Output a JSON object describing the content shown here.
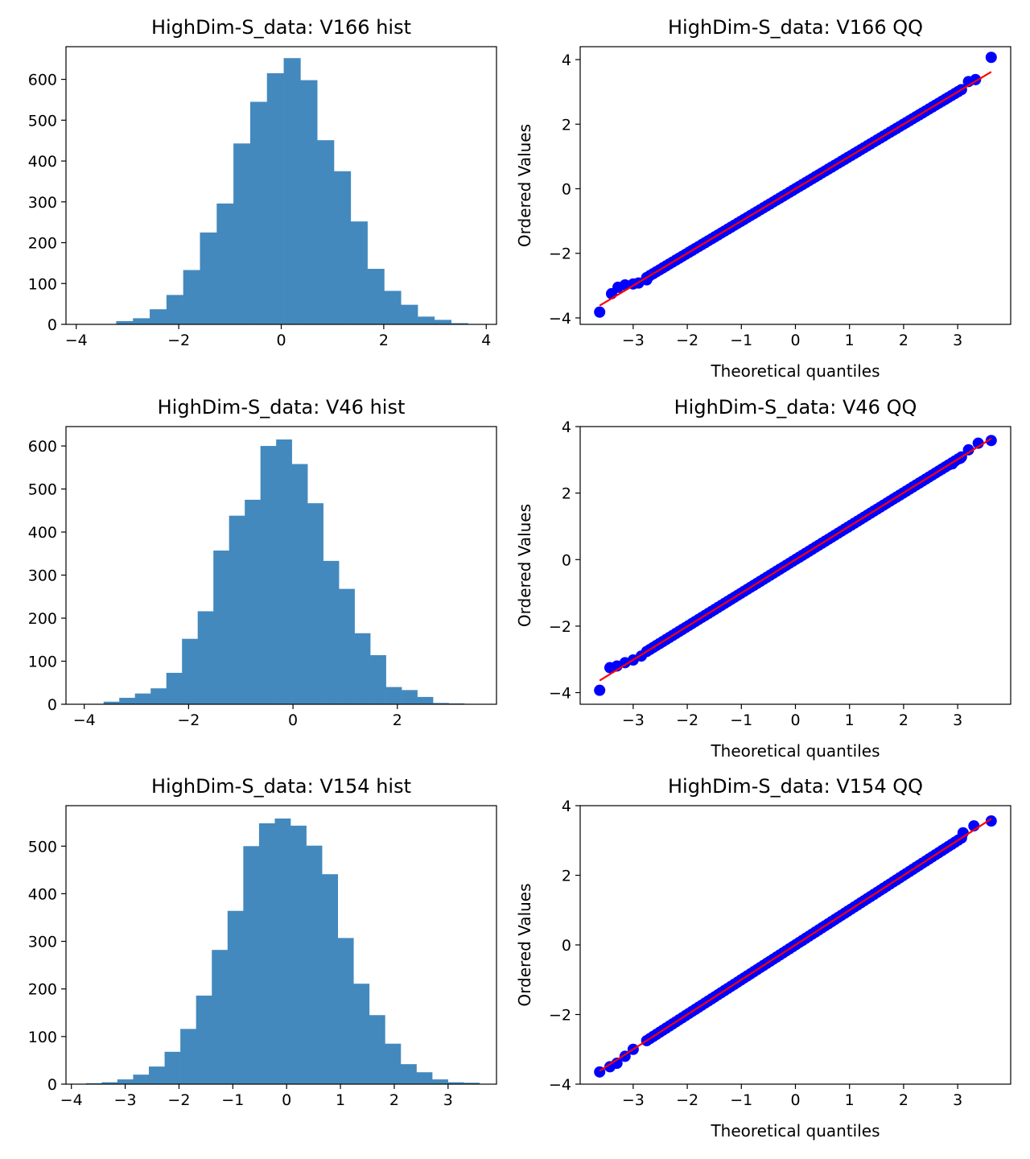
{
  "chart_data": [
    {
      "type": "bar",
      "kind": "histogram",
      "title": "HighDim-S_data: V166 hist",
      "xlabel": "",
      "ylabel": "",
      "xlim": [
        -4.2,
        4.2
      ],
      "ylim": [
        0,
        680
      ],
      "xticks": [
        -4,
        -2,
        0,
        2,
        4
      ],
      "yticks": [
        0,
        100,
        200,
        300,
        400,
        500,
        600
      ],
      "bin_start": -3.22,
      "bin_width": 0.3268,
      "counts": [
        8,
        15,
        37,
        72,
        133,
        225,
        296,
        443,
        545,
        615,
        652,
        598,
        451,
        375,
        252,
        136,
        82,
        48,
        19,
        11,
        3,
        0,
        0,
        0,
        1
      ],
      "color": "#4389BE"
    },
    {
      "type": "scatter",
      "kind": "qq",
      "title": "HighDim-S_data: V166 QQ",
      "xlabel": "Theoretical quantiles",
      "ylabel": "Ordered Values",
      "xlim": [
        -3.98,
        3.98
      ],
      "ylim": [
        -4.2,
        4.4
      ],
      "xticks": [
        -3,
        -2,
        -1,
        0,
        1,
        2,
        3
      ],
      "yticks": [
        -4,
        -2,
        0,
        2,
        4
      ],
      "line": {
        "slope": 1.0,
        "intercept": 0.0
      },
      "points": [
        [
          -3.62,
          -3.82
        ],
        [
          -3.4,
          -3.25
        ],
        [
          -3.28,
          -3.05
        ],
        [
          -3.15,
          -2.98
        ],
        [
          -3.0,
          -2.95
        ],
        [
          -2.9,
          -2.92
        ],
        [
          -2.75,
          -2.82
        ],
        [
          3.2,
          3.32
        ],
        [
          3.33,
          3.38
        ],
        [
          3.62,
          4.07
        ]
      ],
      "marker_color": "#0000FF",
      "line_color": "#FF0000"
    },
    {
      "type": "bar",
      "kind": "histogram",
      "title": "HighDim-S_data: V46 hist",
      "xlabel": "",
      "ylabel": "",
      "xlim": [
        -4.35,
        3.9
      ],
      "ylim": [
        0,
        645
      ],
      "xticks": [
        -4,
        -2,
        0,
        2
      ],
      "yticks": [
        0,
        100,
        200,
        300,
        400,
        500,
        600
      ],
      "bin_start": -3.93,
      "bin_width": 0.3006,
      "counts": [
        1,
        6,
        15,
        25,
        37,
        73,
        152,
        216,
        357,
        438,
        475,
        600,
        615,
        558,
        467,
        333,
        268,
        165,
        114,
        40,
        33,
        17,
        3,
        2
      ],
      "color": "#4389BE"
    },
    {
      "type": "scatter",
      "kind": "qq",
      "title": "HighDim-S_data: V46 QQ",
      "xlabel": "Theoretical quantiles",
      "ylabel": "Ordered Values",
      "xlim": [
        -3.98,
        3.98
      ],
      "ylim": [
        -4.35,
        4.0
      ],
      "xticks": [
        -3,
        -2,
        -1,
        0,
        1,
        2,
        3
      ],
      "yticks": [
        -4,
        -2,
        0,
        2,
        4
      ],
      "line": {
        "slope": 1.005,
        "intercept": 0.0
      },
      "points": [
        [
          -3.62,
          -3.93
        ],
        [
          -3.43,
          -3.25
        ],
        [
          -3.3,
          -3.2
        ],
        [
          -3.15,
          -3.1
        ],
        [
          -3.0,
          -3.02
        ],
        [
          -2.85,
          -2.9
        ],
        [
          2.9,
          2.88
        ],
        [
          3.05,
          3.05
        ],
        [
          3.2,
          3.3
        ],
        [
          3.38,
          3.5
        ],
        [
          3.62,
          3.58
        ]
      ],
      "marker_color": "#0000FF",
      "line_color": "#FF0000"
    },
    {
      "type": "bar",
      "kind": "histogram",
      "title": "HighDim-S_data: V154 hist",
      "xlabel": "",
      "ylabel": "",
      "xlim": [
        -4.1,
        3.9
      ],
      "ylim": [
        0,
        585
      ],
      "xticks": [
        -4,
        -3,
        -2,
        -1,
        0,
        1,
        2,
        3
      ],
      "yticks": [
        0,
        100,
        200,
        300,
        400,
        500
      ],
      "bin_start": -3.73,
      "bin_width": 0.2925,
      "counts": [
        2,
        4,
        10,
        20,
        37,
        68,
        116,
        186,
        282,
        364,
        500,
        548,
        558,
        543,
        501,
        441,
        307,
        211,
        145,
        85,
        42,
        25,
        10,
        4,
        3
      ],
      "color": "#4389BE"
    },
    {
      "type": "scatter",
      "kind": "qq",
      "title": "HighDim-S_data: V154 QQ",
      "xlabel": "Theoretical quantiles",
      "ylabel": "Ordered Values",
      "xlim": [
        -3.98,
        3.98
      ],
      "ylim": [
        -4.0,
        4.0
      ],
      "xticks": [
        -3,
        -2,
        -1,
        0,
        1,
        2,
        3
      ],
      "yticks": [
        -4,
        -2,
        0,
        2,
        4
      ],
      "line": {
        "slope": 1.0,
        "intercept": 0.0
      },
      "points": [
        [
          -3.62,
          -3.65
        ],
        [
          -3.43,
          -3.5
        ],
        [
          -3.3,
          -3.4
        ],
        [
          -3.15,
          -3.2
        ],
        [
          -3.0,
          -3.0
        ],
        [
          3.1,
          3.22
        ],
        [
          3.3,
          3.42
        ],
        [
          3.62,
          3.56
        ]
      ],
      "marker_color": "#0000FF",
      "line_color": "#FF0000"
    }
  ]
}
